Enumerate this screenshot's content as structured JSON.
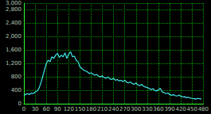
{
  "chart_data": {
    "type": "line",
    "color": "#40e8e8",
    "grid": true,
    "x": [
      0,
      5,
      10,
      15,
      20,
      25,
      30,
      35,
      40,
      45,
      50,
      55,
      60,
      65,
      70,
      75,
      80,
      85,
      90,
      95,
      100,
      105,
      110,
      115,
      120,
      125,
      130,
      135,
      140,
      145,
      150,
      155,
      160,
      165,
      170,
      175,
      180,
      185,
      190,
      195,
      200,
      205,
      210,
      215,
      220,
      225,
      230,
      235,
      240,
      245,
      250,
      255,
      260,
      265,
      270,
      275,
      280,
      285,
      290,
      295,
      300,
      305,
      310,
      315,
      320,
      325,
      330,
      335,
      340,
      345,
      350,
      355,
      360,
      365,
      370,
      375,
      380,
      385,
      390,
      395,
      400,
      405,
      410,
      415,
      420,
      425,
      430,
      435,
      440,
      445,
      450,
      455,
      460,
      465,
      470,
      475
    ],
    "values": [
      250,
      280,
      300,
      270,
      320,
      300,
      350,
      380,
      450,
      600,
      800,
      1000,
      1200,
      1300,
      1250,
      1400,
      1350,
      1450,
      1500,
      1380,
      1450,
      1400,
      1520,
      1350,
      1480,
      1550,
      1400,
      1420,
      1300,
      1250,
      1100,
      1050,
      1000,
      980,
      950,
      900,
      920,
      880,
      850,
      870,
      820,
      800,
      830,
      780,
      760,
      800,
      740,
      720,
      760,
      700,
      720,
      680,
      700,
      660,
      700,
      640,
      620,
      650,
      600,
      580,
      620,
      560,
      540,
      580,
      520,
      500,
      480,
      460,
      420,
      450,
      400,
      380,
      420,
      460,
      350,
      330,
      300,
      320,
      280,
      250,
      270,
      240,
      230,
      260,
      220,
      200,
      210,
      180,
      190,
      170,
      160,
      150,
      140,
      160,
      150,
      140
    ],
    "xlim": [
      0,
      480
    ],
    "xticks": [
      0,
      30,
      60,
      90,
      120,
      150,
      180,
      210,
      240,
      270,
      300,
      330,
      360,
      390,
      420,
      450,
      480
    ],
    "ylim": [
      0,
      3000
    ],
    "yticks": [
      0,
      400,
      800,
      1200,
      1600,
      2000,
      2400,
      2800
    ]
  }
}
